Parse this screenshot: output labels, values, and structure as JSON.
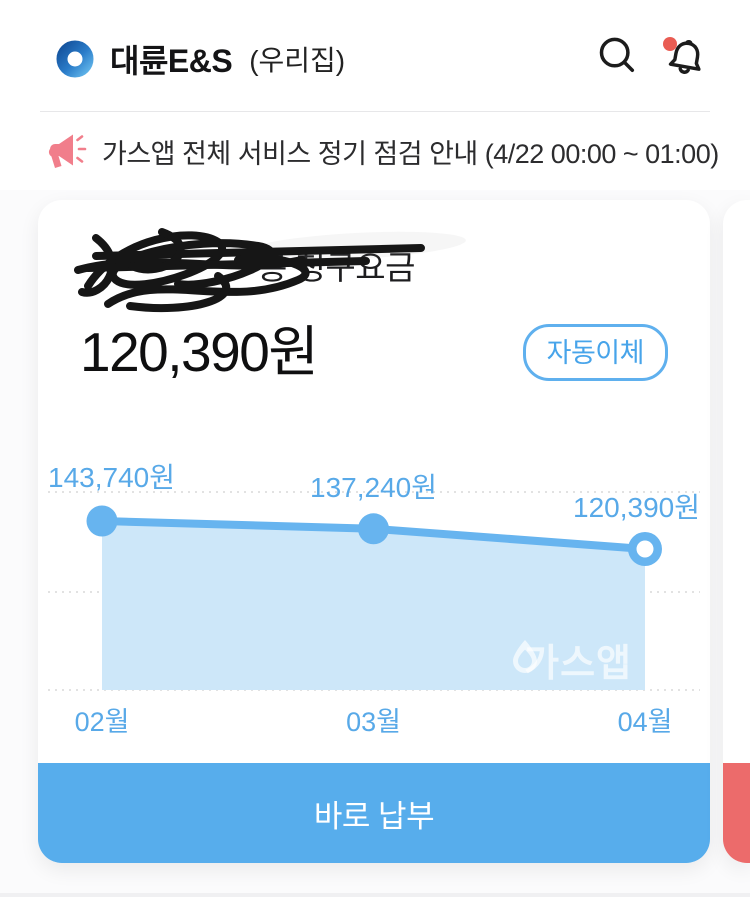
{
  "header": {
    "title": "대륜E&S",
    "subtitle": "(우리집)",
    "has_notification_badge": true
  },
  "notice": {
    "text": "가스앱 전체 서비스 정기 점검 안내 (4/22 00:00 ~ 01:00)"
  },
  "bill_card": {
    "title_visible": "총 청구요금",
    "title_redacted": true,
    "amount": "120,390원",
    "badge": "자동이체",
    "watermark": "가스앱",
    "pay_button": "바로 납부"
  },
  "chart_data": {
    "type": "area",
    "title": "",
    "categories": [
      "02월",
      "03월",
      "04월"
    ],
    "values": [
      143740,
      137240,
      120390
    ],
    "value_labels": [
      "143,740원",
      "137,240원",
      "120,390원"
    ],
    "unit": "원",
    "ylim": [
      110000,
      150000
    ],
    "grid": "horizontal-dotted",
    "legend": "none",
    "line_color": "#67B4EF",
    "fill_color": "#CDE7F9",
    "label_color": "#58A9E8",
    "grid_color": "#e2e2e2",
    "last_point_hollow": true
  },
  "colors": {
    "accent_blue": "#57ADEC",
    "badge_blue": "#47A4EA",
    "next_card_red": "#EC6B6B",
    "notice_pink": "#F17E8B",
    "notification_dot": "#E95C53"
  }
}
